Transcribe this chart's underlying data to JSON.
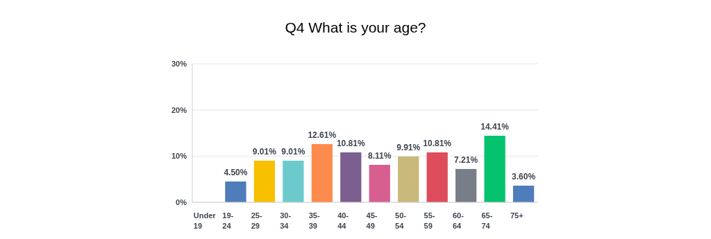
{
  "chart_data": {
    "type": "bar",
    "title": "Q4 What is your age?",
    "categories": [
      "Under 19",
      "19-24",
      "25-29",
      "30-34",
      "35-39",
      "40-44",
      "45-49",
      "50-54",
      "55-59",
      "60-64",
      "65-74",
      "75+"
    ],
    "values": [
      0,
      4.5,
      9.01,
      9.01,
      12.61,
      10.81,
      8.11,
      9.91,
      10.81,
      7.21,
      14.41,
      3.6
    ],
    "value_labels": [
      null,
      "4.50%",
      "9.01%",
      "9.01%",
      "12.61%",
      "10.81%",
      "8.11%",
      "9.91%",
      "10.81%",
      "7.21%",
      "14.41%",
      "3.60%"
    ],
    "colors": [
      "#4f7cba",
      "#4f7cba",
      "#f7c001",
      "#6ccacd",
      "#fe8b4e",
      "#7d5e91",
      "#d65f8f",
      "#c9b97b",
      "#dd4d5b",
      "#787e87",
      "#04c26e",
      "#4f7cba"
    ],
    "ylim": [
      0,
      30
    ],
    "yticks": [
      {
        "value": 0,
        "label": "0%"
      },
      {
        "value": 10,
        "label": "10%"
      },
      {
        "value": 20,
        "label": "20%"
      },
      {
        "value": 30,
        "label": "30%"
      }
    ],
    "grid": "y"
  }
}
